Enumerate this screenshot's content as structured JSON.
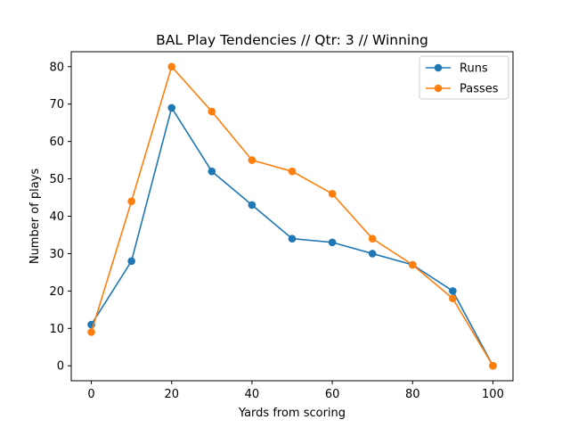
{
  "chart_data": {
    "type": "line",
    "title": "BAL Play Tendencies // Qtr: 3 // Winning",
    "xlabel": "Yards from scoring",
    "ylabel": "Number of plays",
    "x": [
      0,
      10,
      20,
      30,
      40,
      50,
      60,
      70,
      80,
      90,
      100
    ],
    "xlim": [
      -5,
      105
    ],
    "ylim": [
      -4,
      84
    ],
    "xticks": [
      0,
      20,
      40,
      60,
      80,
      100
    ],
    "yticks": [
      0,
      10,
      20,
      30,
      40,
      50,
      60,
      70,
      80
    ],
    "grid": false,
    "legend_position": "top-right",
    "series": [
      {
        "name": "Runs",
        "color": "#1f77b4",
        "values": [
          11,
          28,
          69,
          52,
          43,
          34,
          33,
          30,
          27,
          20,
          0
        ]
      },
      {
        "name": "Passes",
        "color": "#ff7f0e",
        "values": [
          9,
          44,
          80,
          68,
          55,
          52,
          46,
          34,
          27,
          18,
          0
        ]
      }
    ]
  }
}
